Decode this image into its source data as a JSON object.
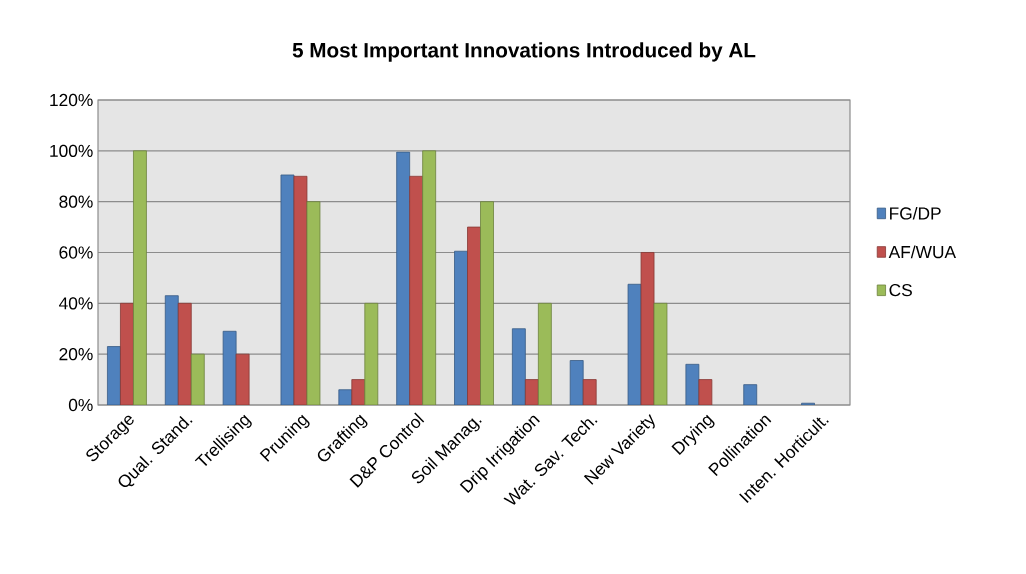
{
  "chart_data": {
    "type": "bar",
    "title": "5 Most Important Innovations Introduced by AL",
    "categories": [
      "Storage",
      "Qual. Stand.",
      "Trellising",
      "Pruning",
      "Grafting",
      "D&P Control",
      "Soil Manag.",
      "Drip Irrigation",
      "Wat. Sav. Tech.",
      "New Variety",
      "Drying",
      "Pollination",
      "Inten. Horticult."
    ],
    "series": [
      {
        "name": "FG/DP",
        "color": "#4f81bd",
        "values": [
          23,
          43,
          29,
          90.5,
          6,
          99.5,
          60.5,
          30,
          17.5,
          47.5,
          16,
          8,
          0.7
        ]
      },
      {
        "name": "AF/WUA",
        "color": "#c0504d",
        "values": [
          40,
          40,
          20,
          90,
          10,
          90,
          70,
          10,
          10,
          60,
          10,
          null,
          null
        ]
      },
      {
        "name": "CS",
        "color": "#9bbb59",
        "values": [
          100,
          20,
          null,
          80,
          40,
          100,
          80,
          40,
          null,
          40,
          null,
          null,
          null
        ]
      }
    ],
    "ylim": [
      0,
      120
    ],
    "yticks": [
      {
        "value": 0,
        "label": "0%"
      },
      {
        "value": 20,
        "label": "20%"
      },
      {
        "value": 40,
        "label": "40%"
      },
      {
        "value": 60,
        "label": "60%"
      },
      {
        "value": 80,
        "label": "80%"
      },
      {
        "value": 100,
        "label": "100%"
      },
      {
        "value": 120,
        "label": "120%"
      }
    ],
    "grid": "y",
    "legend": "right"
  }
}
